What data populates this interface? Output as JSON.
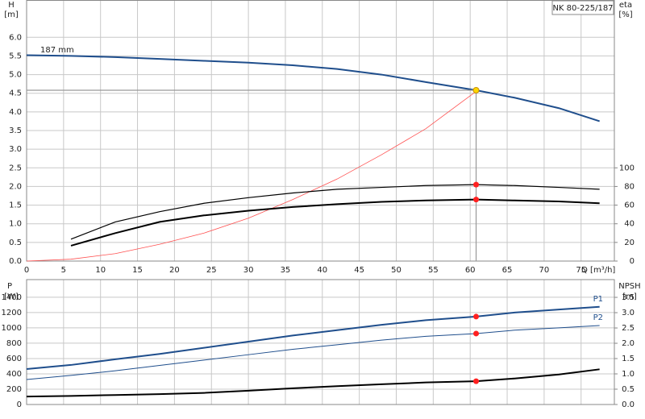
{
  "chart_data": [
    {
      "type": "line",
      "title": "NK 80-225/187",
      "annotation": "187 mm",
      "xlabel": "Q [m³/h]",
      "ylabel": "H",
      "yunit": "[m]",
      "y2label": "eta",
      "y2unit": "[%]",
      "xlim": [
        0,
        79.5
      ],
      "xticks": [
        0,
        5,
        10,
        15,
        20,
        25,
        30,
        35,
        40,
        45,
        50,
        55,
        60,
        65,
        70,
        75
      ],
      "ylim": [
        0,
        7
      ],
      "yticks": [
        {
          "value": 0,
          "label": "0.0"
        },
        0.5,
        {
          "value": 1,
          "label": "1.0"
        },
        1.5,
        {
          "value": 2,
          "label": "2.0"
        },
        2.5,
        {
          "value": 3,
          "label": "3.0"
        },
        3.5,
        {
          "value": 4,
          "label": "4.0"
        },
        4.5,
        {
          "value": 5,
          "label": "5.0"
        },
        5.5,
        {
          "value": 6,
          "label": "6.0"
        }
      ],
      "y2lim": [
        0,
        280
      ],
      "y2ticks": [
        0,
        20,
        40,
        60,
        80,
        100
      ],
      "grid": true,
      "marker_x": 60.8,
      "series": [
        {
          "color": "#1f4e8c",
          "width": 2,
          "marker": 4.58,
          "marker_color": "#ffd700",
          "x": [
            0,
            6,
            12,
            18,
            24,
            30,
            36,
            42,
            48,
            54,
            60.8,
            66,
            72,
            77.5
          ],
          "values": [
            5.52,
            5.5,
            5.47,
            5.42,
            5.37,
            5.32,
            5.25,
            5.15,
            5.0,
            4.8,
            4.58,
            4.38,
            4.1,
            3.75
          ]
        },
        {
          "color": "#ff5050",
          "width": 0.8,
          "x": [
            0,
            6,
            12,
            18,
            24,
            30,
            36,
            42,
            48,
            54,
            60.8
          ],
          "values": [
            0,
            0.05,
            0.2,
            0.45,
            0.75,
            1.15,
            1.65,
            2.2,
            2.85,
            3.55,
            4.55
          ]
        },
        {
          "color": "#000000",
          "width": 1.2,
          "axis": "y2",
          "marker": 82,
          "marker_color": "#ff2020",
          "x": [
            6,
            12,
            18,
            24,
            30,
            36,
            42,
            48,
            54,
            60.8,
            66,
            72,
            77.5
          ],
          "values": [
            23.5,
            42,
            53,
            62,
            68,
            73,
            77,
            79,
            81,
            82,
            81,
            79,
            77
          ]
        },
        {
          "color": "#000000",
          "width": 2,
          "axis": "y2",
          "marker": 66,
          "marker_color": "#ff2020",
          "x": [
            6,
            12,
            18,
            24,
            30,
            36,
            42,
            48,
            54,
            60.8,
            66,
            72,
            77.5
          ],
          "values": [
            16.5,
            30,
            42,
            49,
            54,
            58,
            61,
            63.5,
            65,
            66,
            65,
            64,
            62
          ]
        }
      ]
    },
    {
      "type": "line",
      "ylabel": "P",
      "yunit": "[W]",
      "y2label": "NPSH",
      "y2unit": "[m]",
      "xlim": [
        0,
        79.5
      ],
      "ylim": [
        0,
        1630
      ],
      "yticks": [
        0,
        200,
        400,
        600,
        800,
        1000,
        1200,
        1400
      ],
      "y2lim": [
        0,
        4.08
      ],
      "y2ticks": [
        {
          "value": 0,
          "label": "0.0"
        },
        0.5,
        {
          "value": 1,
          "label": "1.0"
        },
        1.5,
        {
          "value": 2,
          "label": "2.0"
        },
        2.5,
        {
          "value": 3,
          "label": "3.0"
        },
        3.5
      ],
      "grid": true,
      "marker_x": 60.8,
      "series": [
        {
          "name": "P1",
          "color": "#1f4e8c",
          "width": 2,
          "marker": 1147,
          "marker_color": "#ff2020",
          "x": [
            0,
            6,
            12,
            18,
            24,
            30,
            36,
            42,
            48,
            54,
            60.8,
            66,
            72,
            77.5
          ],
          "values": [
            463,
            516,
            590,
            660,
            740,
            820,
            900,
            970,
            1040,
            1100,
            1147,
            1200,
            1240,
            1275
          ]
        },
        {
          "name": "P2",
          "color": "#1f4e8c",
          "width": 1,
          "marker": 926,
          "marker_color": "#ff2020",
          "x": [
            0,
            6,
            12,
            18,
            24,
            30,
            36,
            42,
            48,
            54,
            60.8,
            66,
            72,
            77.5
          ],
          "values": [
            326,
            380,
            440,
            510,
            580,
            650,
            720,
            780,
            840,
            890,
            926,
            970,
            1000,
            1030
          ]
        },
        {
          "color": "#000000",
          "width": 2,
          "axis": "y2",
          "marker": 0.76,
          "marker_color": "#ff2020",
          "x": [
            0,
            6,
            12,
            18,
            24,
            30,
            36,
            42,
            48,
            54,
            60.8,
            66,
            72,
            77.5
          ],
          "values": [
            0.26,
            0.28,
            0.31,
            0.34,
            0.38,
            0.45,
            0.53,
            0.6,
            0.66,
            0.72,
            0.76,
            0.85,
            0.98,
            1.15
          ]
        }
      ]
    }
  ]
}
